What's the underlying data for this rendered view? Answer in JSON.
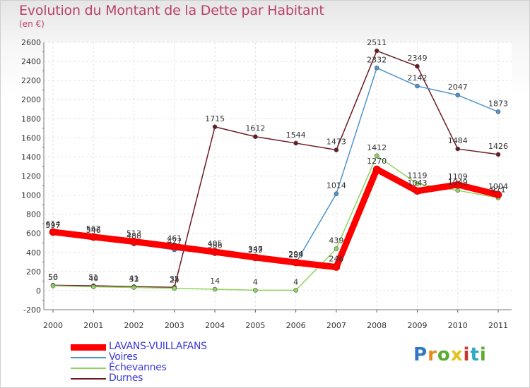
{
  "title": "Evolution du Montant de la Dette par Habitant",
  "unit": "(en €)",
  "logo": {
    "text": "Proxiti",
    "colors": [
      "#2f79c4",
      "#e38b1c",
      "#5aac2f",
      "#e3c21c",
      "#c23a2f",
      "#2fa8c4",
      "#5aac2f"
    ]
  },
  "chart_data": {
    "type": "line",
    "x": [
      "2000",
      "2001",
      "2002",
      "2003",
      "2004",
      "2005",
      "2006",
      "2007",
      "2008",
      "2009",
      "2010",
      "2011"
    ],
    "ylim": [
      -200,
      2600
    ],
    "yticks": [
      -200,
      0,
      200,
      400,
      600,
      800,
      1000,
      1200,
      1400,
      1600,
      1800,
      2000,
      2200,
      2400,
      2600
    ],
    "grid": true,
    "legend": "bottom-left",
    "series": [
      {
        "name": "LAVANS-VUILLAFANS",
        "color": "#ff0000",
        "values": [
          614,
          562,
          513,
          461,
          405,
          347,
          294,
          246,
          1270,
          1043,
          1109,
          1004
        ],
        "labels": [
          "614",
          "562",
          "513",
          "461",
          "405",
          "347",
          "294",
          "246",
          "1270",
          "1043",
          "1109",
          "1004"
        ]
      },
      {
        "name": "Voires",
        "color": "#4f94cf",
        "values": [
          597,
          546,
          488,
          427,
          386,
          339,
          289,
          1014,
          2332,
          2142,
          2047,
          1873
        ],
        "labels": [
          "597",
          "546",
          "488",
          "427",
          "386",
          "339",
          "289",
          "1014",
          "2332",
          "2142",
          "2047",
          "1873"
        ]
      },
      {
        "name": "Échevannes",
        "color": "#8fd45c",
        "values": [
          50,
          40,
          33,
          24,
          14,
          4,
          4,
          439,
          1412,
          1119,
          1049,
          971
        ],
        "labels": [
          "50",
          "40",
          "33",
          "24",
          "14",
          "4",
          "4",
          "439",
          "1412",
          "1119",
          "1049",
          "971"
        ]
      },
      {
        "name": "Durnes",
        "color": "#6b1a24",
        "values": [
          56,
          51,
          41,
          35,
          1715,
          1612,
          1544,
          1473,
          2511,
          2349,
          1484,
          1426
        ],
        "labels": [
          "56",
          "51",
          "41",
          "35",
          "1715",
          "1612",
          "1544",
          "1473",
          "2511",
          "2349",
          "1484",
          "1426"
        ]
      }
    ]
  }
}
